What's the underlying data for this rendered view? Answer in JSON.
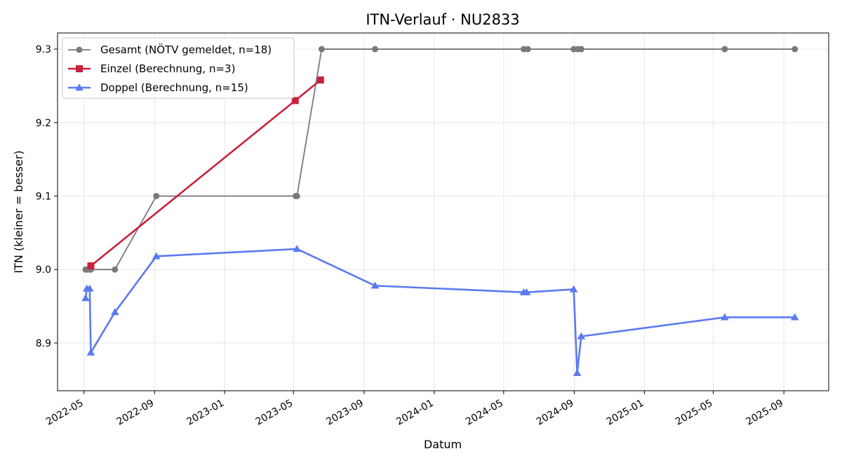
{
  "chart_data": {
    "type": "line",
    "title": "ITN-Verlauf · NU2833",
    "xlabel": "Datum",
    "ylabel": "ITN  (kleiner = besser)",
    "x_axis_type": "date",
    "xlim": [
      "2022-03-16",
      "2025-11-18"
    ],
    "ylim": [
      8.835,
      9.322
    ],
    "x_ticks": [
      "2022-05-01",
      "2022-09-01",
      "2023-01-01",
      "2023-05-01",
      "2023-09-01",
      "2024-01-01",
      "2024-05-01",
      "2024-09-01",
      "2025-01-01",
      "2025-05-01",
      "2025-09-01"
    ],
    "x_tick_labels": [
      "2022-05",
      "2022-09",
      "2023-01",
      "2023-05",
      "2023-09",
      "2024-01",
      "2024-05",
      "2024-09",
      "2025-01",
      "2025-05",
      "2025-09"
    ],
    "y_ticks": [
      8.9,
      9.0,
      9.1,
      9.2,
      9.3
    ],
    "y_tick_labels": [
      "8.9",
      "9.0",
      "9.1",
      "9.2",
      "9.3"
    ],
    "grid": true,
    "legend_position": "top-left",
    "series": [
      {
        "name": "Gesamt (NÖTV gemeldet, n=18)",
        "color": "#555555",
        "marker": "circle",
        "points": [
          {
            "x": "2022-05-04",
            "y": 9.0
          },
          {
            "x": "2022-05-06",
            "y": 9.0
          },
          {
            "x": "2022-05-11",
            "y": 9.0
          },
          {
            "x": "2022-05-13",
            "y": 9.0
          },
          {
            "x": "2022-06-24",
            "y": 9.0
          },
          {
            "x": "2022-09-04",
            "y": 9.1
          },
          {
            "x": "2023-05-05",
            "y": 9.1
          },
          {
            "x": "2023-05-07",
            "y": 9.1
          },
          {
            "x": "2023-06-19",
            "y": 9.3
          },
          {
            "x": "2023-09-20",
            "y": 9.3
          },
          {
            "x": "2024-06-05",
            "y": 9.3
          },
          {
            "x": "2024-06-12",
            "y": 9.3
          },
          {
            "x": "2024-08-31",
            "y": 9.3
          },
          {
            "x": "2024-09-07",
            "y": 9.3
          },
          {
            "x": "2024-09-13",
            "y": 9.3
          },
          {
            "x": "2025-05-21",
            "y": 9.3
          },
          {
            "x": "2025-09-20",
            "y": 9.3
          }
        ]
      },
      {
        "name": "Einzel (Berechnung, n=3)",
        "color": "#c8213c",
        "marker": "square",
        "points": [
          {
            "x": "2022-05-13",
            "y": 9.005
          },
          {
            "x": "2023-05-04",
            "y": 9.23
          },
          {
            "x": "2023-06-17",
            "y": 9.258
          }
        ]
      },
      {
        "name": "Doppel (Berechnung, n=15)",
        "color": "#4a6cf0",
        "marker": "triangle",
        "points": [
          {
            "x": "2022-05-04",
            "y": 8.961
          },
          {
            "x": "2022-05-06",
            "y": 8.974
          },
          {
            "x": "2022-05-11",
            "y": 8.974
          },
          {
            "x": "2022-05-13",
            "y": 8.887
          },
          {
            "x": "2022-06-24",
            "y": 8.942
          },
          {
            "x": "2022-09-04",
            "y": 9.018
          },
          {
            "x": "2023-05-07",
            "y": 9.028
          },
          {
            "x": "2023-09-20",
            "y": 8.978
          },
          {
            "x": "2024-06-05",
            "y": 8.969
          },
          {
            "x": "2024-06-10",
            "y": 8.969
          },
          {
            "x": "2024-08-31",
            "y": 8.973
          },
          {
            "x": "2024-09-06",
            "y": 8.859
          },
          {
            "x": "2024-09-13",
            "y": 8.909
          },
          {
            "x": "2025-05-21",
            "y": 8.935
          },
          {
            "x": "2025-09-20",
            "y": 8.935
          }
        ]
      }
    ]
  }
}
